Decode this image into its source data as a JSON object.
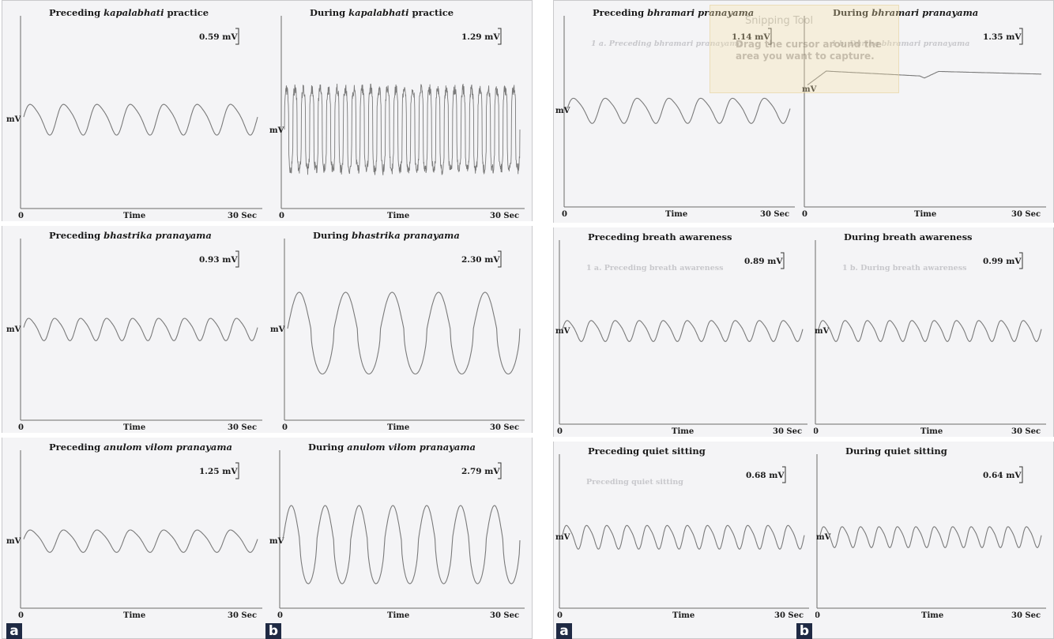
{
  "figure_labels": {
    "a": "a",
    "b": "b"
  },
  "panel_axis": {
    "y_label": "mV",
    "x_label": "Time",
    "x_start": "0",
    "x_end": "30 Sec"
  },
  "snipping_tool": {
    "title": "Snipping Tool",
    "body": "Drag the cursor around the area you want to capture."
  },
  "chart_data": [
    {
      "id": "kapalabhati-pre",
      "type": "line",
      "title_prefix": "Preceding ",
      "title_em": "kapalabhati",
      "title_suffix": " practice",
      "scale": "0.59 mV",
      "wave": "sine",
      "cycles": 7
    },
    {
      "id": "kapalabhati-dur",
      "type": "line",
      "title_prefix": "During ",
      "title_em": "kapalabhati",
      "title_suffix": " practice",
      "scale": "1.29 mV",
      "wave": "rapid",
      "cycles": 28
    },
    {
      "id": "bhastrika-pre",
      "type": "line",
      "title_prefix": "Preceding ",
      "title_em": "bhastrika pranayama",
      "title_suffix": "",
      "scale": "0.93 mV",
      "wave": "sine",
      "cycles": 9
    },
    {
      "id": "bhastrika-dur",
      "type": "line",
      "title_prefix": "During ",
      "title_em": "bhastrika  pranayama",
      "title_suffix": "",
      "scale": "2.30 mV",
      "wave": "deep",
      "cycles": 5
    },
    {
      "id": "anulom-pre",
      "type": "line",
      "title_prefix": "Preceding ",
      "title_em": "anulom vilom pranayama",
      "title_suffix": "",
      "scale": "1.25 mV",
      "wave": "sine",
      "cycles": 7
    },
    {
      "id": "anulom-dur",
      "type": "line",
      "title_prefix": "During ",
      "title_em": "anulom vilom pranayama",
      "title_suffix": "",
      "scale": "2.79 mV",
      "wave": "deep",
      "cycles": 7
    },
    {
      "id": "bhramari-pre",
      "type": "line",
      "title_prefix": "Preceding ",
      "title_em": "bhramari pranayama",
      "title_suffix": "",
      "scale": "1.14 mV",
      "wave": "sine",
      "cycles": 7,
      "ghost": "1 a. Preceding bhramari pranayama"
    },
    {
      "id": "bhramari-dur",
      "type": "line",
      "title_prefix": "During ",
      "title_em": "bhramari pranayama",
      "title_suffix": "",
      "scale": "1.35 mV",
      "wave": "plateau",
      "cycles": 2,
      "ghost": "1 b. During bhramari pranayama"
    },
    {
      "id": "breath-pre",
      "type": "line",
      "title_prefix": "Preceding breath awareness",
      "title_em": "",
      "title_suffix": "",
      "scale": "0.89 mV",
      "wave": "sine",
      "cycles": 10,
      "ghost": "1 a. Preceding breath awareness"
    },
    {
      "id": "breath-dur",
      "type": "line",
      "title_prefix": "During breath awareness",
      "title_em": "",
      "title_suffix": "",
      "scale": "0.99 mV",
      "wave": "sine",
      "cycles": 10,
      "ghost": "1 b. During breath awareness"
    },
    {
      "id": "quiet-pre",
      "type": "line",
      "title_prefix": "Preceding quiet sitting",
      "title_em": "",
      "title_suffix": "",
      "scale": "0.68 mV",
      "wave": "sine",
      "cycles": 12,
      "ghost": "Preceding quiet sitting"
    },
    {
      "id": "quiet-dur",
      "type": "line",
      "title_prefix": "During quiet sitting",
      "title_em": "",
      "title_suffix": "",
      "scale": "0.64 mV",
      "wave": "sine",
      "cycles": 12
    }
  ]
}
